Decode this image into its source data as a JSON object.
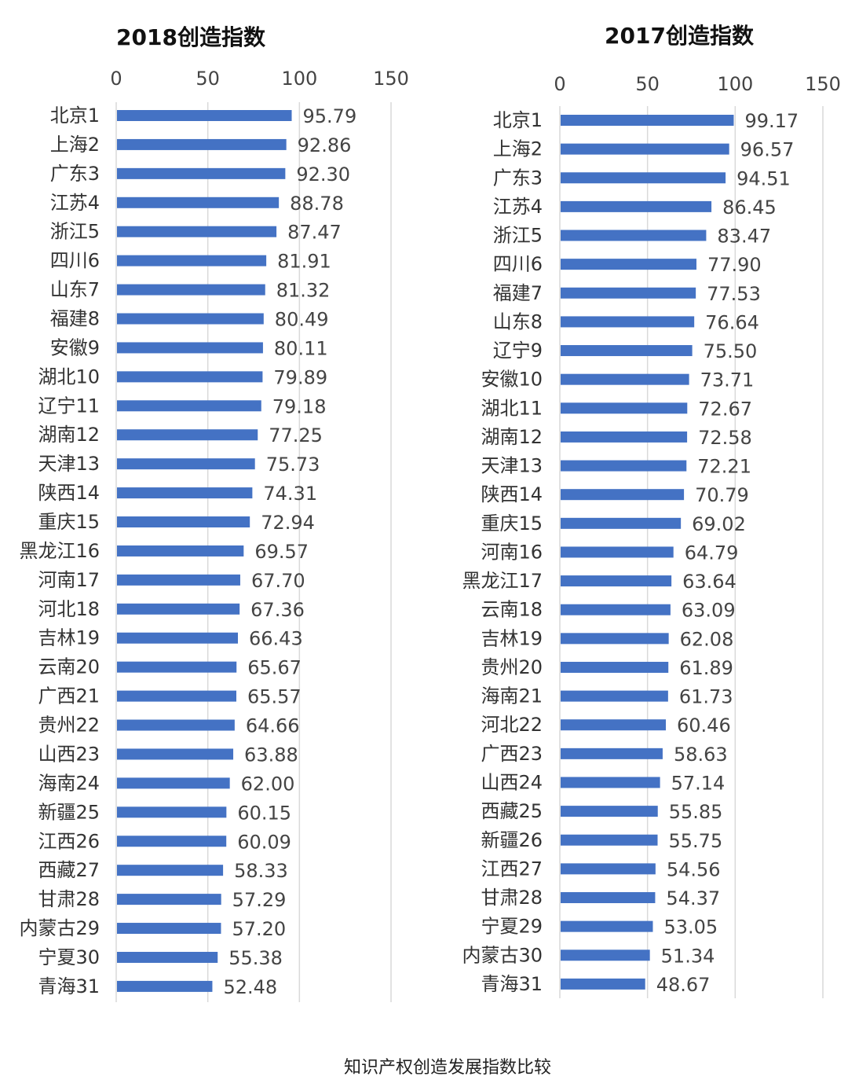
{
  "caption": "知识产权创造发展指数比较",
  "chart_data": [
    {
      "type": "bar",
      "orientation": "horizontal",
      "title": "2018创造指数",
      "xlim": [
        0,
        150
      ],
      "ticks": [
        0,
        50,
        100,
        150
      ],
      "grid": true,
      "bar_color": "#4472c4",
      "categories": [
        "北京1",
        "上海2",
        "广东3",
        "江苏4",
        "浙江5",
        "四川6",
        "山东7",
        "福建8",
        "安徽9",
        "湖北10",
        "辽宁11",
        "湖南12",
        "天津13",
        "陕西14",
        "重庆15",
        "黑龙江16",
        "河南17",
        "河北18",
        "吉林19",
        "云南20",
        "广西21",
        "贵州22",
        "山西23",
        "海南24",
        "新疆25",
        "江西26",
        "西藏27",
        "甘肃28",
        "内蒙古29",
        "宁夏30",
        "青海31"
      ],
      "values": [
        95.79,
        92.86,
        92.3,
        88.78,
        87.47,
        81.91,
        81.32,
        80.49,
        80.11,
        79.89,
        79.18,
        77.25,
        75.73,
        74.31,
        72.94,
        69.57,
        67.7,
        67.36,
        66.43,
        65.67,
        65.57,
        64.66,
        63.88,
        62.0,
        60.15,
        60.09,
        58.33,
        57.29,
        57.2,
        55.38,
        52.48
      ],
      "value_labels": [
        "95.79",
        "92.86",
        "92.30",
        "88.78",
        "87.47",
        "81.91",
        "81.32",
        "80.49",
        "80.11",
        "79.89",
        "79.18",
        "77.25",
        "75.73",
        "74.31",
        "72.94",
        "69.57",
        "67.70",
        "67.36",
        "66.43",
        "65.67",
        "65.57",
        "64.66",
        "63.88",
        "62.00",
        "60.15",
        "60.09",
        "58.33",
        "57.29",
        "57.20",
        "55.38",
        "52.48"
      ]
    },
    {
      "type": "bar",
      "orientation": "horizontal",
      "title": "2017创造指数",
      "xlim": [
        0,
        150
      ],
      "ticks": [
        0,
        50,
        100,
        150
      ],
      "grid": true,
      "bar_color": "#4472c4",
      "categories": [
        "北京1",
        "上海2",
        "广东3",
        "江苏4",
        "浙江5",
        "四川6",
        "福建7",
        "山东8",
        "辽宁9",
        "安徽10",
        "湖北11",
        "湖南12",
        "天津13",
        "陕西14",
        "重庆15",
        "河南16",
        "黑龙江17",
        "云南18",
        "吉林19",
        "贵州20",
        "海南21",
        "河北22",
        "广西23",
        "山西24",
        "西藏25",
        "新疆26",
        "江西27",
        "甘肃28",
        "宁夏29",
        "内蒙古30",
        "青海31"
      ],
      "values": [
        99.17,
        96.57,
        94.51,
        86.45,
        83.47,
        77.9,
        77.53,
        76.64,
        75.5,
        73.71,
        72.67,
        72.58,
        72.21,
        70.79,
        69.02,
        64.79,
        63.64,
        63.09,
        62.08,
        61.89,
        61.73,
        60.46,
        58.63,
        57.14,
        55.85,
        55.75,
        54.56,
        54.37,
        53.05,
        51.34,
        48.67
      ],
      "value_labels": [
        "99.17",
        "96.57",
        "94.51",
        "86.45",
        "83.47",
        "77.90",
        "77.53",
        "76.64",
        "75.50",
        "73.71",
        "72.67",
        "72.58",
        "72.21",
        "70.79",
        "69.02",
        "64.79",
        "63.64",
        "63.09",
        "62.08",
        "61.89",
        "61.73",
        "60.46",
        "58.63",
        "57.14",
        "55.85",
        "55.75",
        "54.56",
        "54.37",
        "53.05",
        "51.34",
        "48.67"
      ]
    }
  ]
}
